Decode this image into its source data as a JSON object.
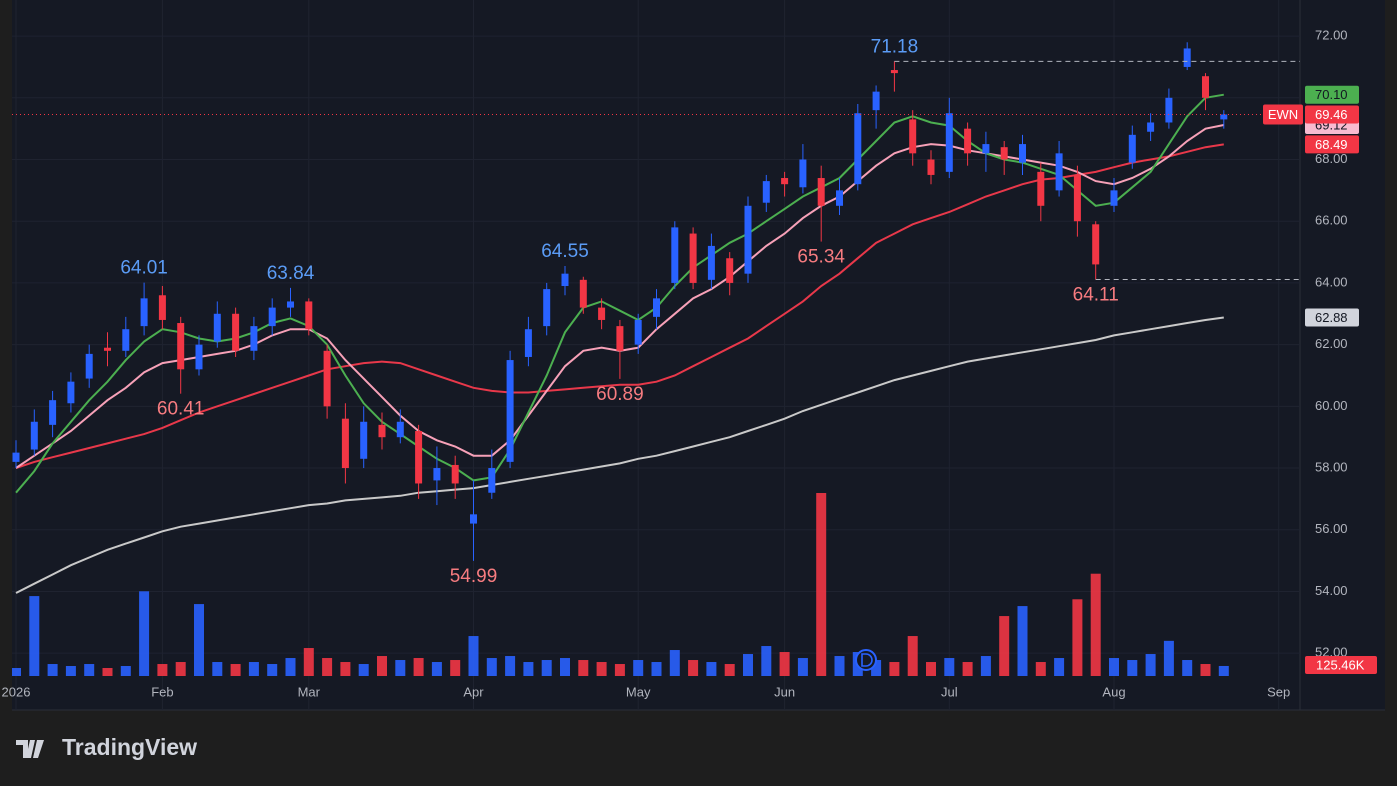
{
  "chart_data": {
    "type": "candlestick",
    "ticker": "EWN",
    "brand": "TradingView",
    "categories": [
      "2026",
      null,
      null,
      null,
      null,
      null,
      null,
      null,
      "Feb",
      null,
      null,
      null,
      null,
      null,
      null,
      null,
      "Mar",
      null,
      null,
      null,
      null,
      null,
      null,
      null,
      null,
      "Apr",
      null,
      null,
      null,
      null,
      null,
      null,
      null,
      null,
      "May",
      null,
      null,
      null,
      null,
      null,
      null,
      null,
      "Jun",
      null,
      null,
      null,
      null,
      null,
      null,
      null,
      null,
      "Jul",
      null,
      null,
      null,
      null,
      null,
      null,
      null,
      null,
      "Aug",
      null,
      null,
      null,
      null,
      null,
      null,
      null,
      null,
      "Sep"
    ],
    "open": [
      58.2,
      58.6,
      59.4,
      60.1,
      60.9,
      61.9,
      61.8,
      62.6,
      63.6,
      62.7,
      61.2,
      62.1,
      63.0,
      61.8,
      62.6,
      63.2,
      63.4,
      61.8,
      59.6,
      58.3,
      59.4,
      59.0,
      59.2,
      57.6,
      58.1,
      56.2,
      57.2,
      58.2,
      61.6,
      62.6,
      63.9,
      64.1,
      63.2,
      62.6,
      62.0,
      62.9,
      64.0,
      65.6,
      64.1,
      64.8,
      64.3,
      66.6,
      67.4,
      67.1,
      67.4,
      66.5,
      67.2,
      69.6,
      70.9,
      69.3,
      68.0,
      67.6,
      69.0,
      68.2,
      68.4,
      67.9,
      67.6,
      67.0,
      67.5,
      65.9,
      66.5,
      67.9,
      68.9,
      69.2,
      71.0,
      70.7,
      69.3,
      null,
      null,
      null
    ],
    "high": [
      58.9,
      59.9,
      60.5,
      61.1,
      62.0,
      62.4,
      62.9,
      64.01,
      63.9,
      62.9,
      62.3,
      63.4,
      63.2,
      62.9,
      63.5,
      63.84,
      63.5,
      62.0,
      60.1,
      60.0,
      59.8,
      59.9,
      59.4,
      58.7,
      58.4,
      57.6,
      58.6,
      61.8,
      62.9,
      64.0,
      64.55,
      64.2,
      63.5,
      62.8,
      63.0,
      63.8,
      66.0,
      65.8,
      65.6,
      65.0,
      66.8,
      67.5,
      67.6,
      68.5,
      67.8,
      67.4,
      69.8,
      70.4,
      71.18,
      69.6,
      68.3,
      70.0,
      69.2,
      68.9,
      68.6,
      68.8,
      67.9,
      68.6,
      67.8,
      66.0,
      67.4,
      69.1,
      69.5,
      70.3,
      71.8,
      70.8,
      69.6,
      null,
      null,
      null
    ],
    "low": [
      58.0,
      58.4,
      59.0,
      59.8,
      60.6,
      61.3,
      61.6,
      62.3,
      62.5,
      60.41,
      61.0,
      61.9,
      61.6,
      61.5,
      62.3,
      62.9,
      62.3,
      59.6,
      57.5,
      58.0,
      58.6,
      58.8,
      57.0,
      56.8,
      57.0,
      54.99,
      57.0,
      58.0,
      61.3,
      62.3,
      63.6,
      63.0,
      62.5,
      60.89,
      61.7,
      62.5,
      63.8,
      63.8,
      63.8,
      63.6,
      64.0,
      66.3,
      66.8,
      66.9,
      65.34,
      66.2,
      67.0,
      69.0,
      70.2,
      67.8,
      67.2,
      67.4,
      67.8,
      67.6,
      67.5,
      67.5,
      66.0,
      66.8,
      65.5,
      64.11,
      66.3,
      67.7,
      68.6,
      69.0,
      70.9,
      69.6,
      69.0,
      null,
      null,
      null
    ],
    "close": [
      58.5,
      59.5,
      60.2,
      60.8,
      61.7,
      61.8,
      62.5,
      63.5,
      62.8,
      61.2,
      62.0,
      63.0,
      61.8,
      62.6,
      63.2,
      63.4,
      62.5,
      60.0,
      58.0,
      59.5,
      59.0,
      59.5,
      57.5,
      58.0,
      57.5,
      56.5,
      58.0,
      61.5,
      62.5,
      63.8,
      64.3,
      63.2,
      62.8,
      61.8,
      62.8,
      63.5,
      65.8,
      64.0,
      65.2,
      64.0,
      66.5,
      67.3,
      67.2,
      68.0,
      66.5,
      67.0,
      69.5,
      70.2,
      70.8,
      68.2,
      67.5,
      69.5,
      68.2,
      68.5,
      68.0,
      68.5,
      66.5,
      68.2,
      66.0,
      64.6,
      67.0,
      68.8,
      69.2,
      70.0,
      71.6,
      70.0,
      69.46,
      null,
      null,
      null
    ],
    "up_color": "#2962ff",
    "down_color": "#f23645",
    "series": [
      {
        "color": "#4caf50",
        "values": [
          57.2,
          57.9,
          58.8,
          59.5,
          60.2,
          60.8,
          61.5,
          62.1,
          62.5,
          62.4,
          62.2,
          62.1,
          62.2,
          62.4,
          62.7,
          62.85,
          62.6,
          62.0,
          61.0,
          60.1,
          59.5,
          59.1,
          58.7,
          58.3,
          58.0,
          57.6,
          57.7,
          58.6,
          59.8,
          61.0,
          62.4,
          63.2,
          63.4,
          63.1,
          62.8,
          63.2,
          63.9,
          64.5,
          64.9,
          65.3,
          65.6,
          66.0,
          66.4,
          66.8,
          67.1,
          67.4,
          68.0,
          68.6,
          69.2,
          69.4,
          69.2,
          69.1,
          68.6,
          68.2,
          68.0,
          67.9,
          67.7,
          67.5,
          67.0,
          66.5,
          66.6,
          67.1,
          67.6,
          68.5,
          69.4,
          70.0,
          70.1,
          null,
          null,
          null
        ],
        "value_labels": [
          null,
          null,
          null,
          null,
          null,
          null,
          null,
          null,
          null,
          null,
          null,
          null,
          null,
          null,
          null,
          null,
          null,
          null,
          null,
          null,
          null,
          null,
          null,
          null,
          null,
          null,
          null,
          null,
          null,
          null,
          null,
          null,
          null,
          null,
          null,
          null,
          null,
          null,
          null,
          null,
          null,
          null,
          null,
          null,
          null,
          null,
          null,
          null,
          null,
          null,
          null,
          null,
          null,
          null,
          null,
          null,
          null,
          null,
          null,
          null,
          null,
          null,
          null,
          null,
          null,
          null,
          "70.10",
          null,
          null,
          null
        ]
      },
      {
        "color": "#f7a1b8",
        "values": [
          58.0,
          58.4,
          58.8,
          59.2,
          59.7,
          60.2,
          60.6,
          61.1,
          61.4,
          61.5,
          61.6,
          61.7,
          61.8,
          62.0,
          62.3,
          62.5,
          62.5,
          62.2,
          61.5,
          60.9,
          60.3,
          59.7,
          59.2,
          58.9,
          58.7,
          58.4,
          58.4,
          58.9,
          59.7,
          60.5,
          61.3,
          61.8,
          61.9,
          61.8,
          61.9,
          62.5,
          63.0,
          63.5,
          63.8,
          64.2,
          64.7,
          65.2,
          65.6,
          66.1,
          66.5,
          66.8,
          67.3,
          67.8,
          68.2,
          68.4,
          68.5,
          68.45,
          68.3,
          68.2,
          68.1,
          68.0,
          67.9,
          67.8,
          67.6,
          67.3,
          67.2,
          67.4,
          67.7,
          68.1,
          68.6,
          69.0,
          69.12,
          null,
          null,
          null
        ]
      },
      {
        "color": "#e8384a",
        "values": [
          58.0,
          58.2,
          58.35,
          58.5,
          58.65,
          58.8,
          58.95,
          59.1,
          59.3,
          59.55,
          59.8,
          60.0,
          60.2,
          60.4,
          60.6,
          60.8,
          61.0,
          61.2,
          61.3,
          61.4,
          61.45,
          61.4,
          61.2,
          61.0,
          60.8,
          60.6,
          60.5,
          60.45,
          60.45,
          60.5,
          60.55,
          60.6,
          60.65,
          60.7,
          60.7,
          60.8,
          61.0,
          61.3,
          61.6,
          61.9,
          62.2,
          62.6,
          63.0,
          63.4,
          63.9,
          64.3,
          64.8,
          65.3,
          65.6,
          65.9,
          66.1,
          66.3,
          66.55,
          66.8,
          67.0,
          67.2,
          67.35,
          67.4,
          67.5,
          67.6,
          67.75,
          67.9,
          68.0,
          68.1,
          68.25,
          68.4,
          68.49,
          null,
          null,
          null
        ]
      },
      {
        "color": "#c9c9c9",
        "values": [
          53.95,
          54.25,
          54.55,
          54.85,
          55.1,
          55.35,
          55.55,
          55.75,
          55.95,
          56.1,
          56.2,
          56.3,
          56.4,
          56.5,
          56.6,
          56.7,
          56.8,
          56.85,
          56.95,
          57.0,
          57.05,
          57.1,
          57.2,
          57.25,
          57.3,
          57.35,
          57.45,
          57.55,
          57.65,
          57.75,
          57.85,
          57.95,
          58.05,
          58.15,
          58.3,
          58.4,
          58.55,
          58.7,
          58.85,
          59.0,
          59.2,
          59.4,
          59.6,
          59.85,
          60.05,
          60.25,
          60.45,
          60.65,
          60.85,
          61.0,
          61.15,
          61.3,
          61.45,
          61.55,
          61.65,
          61.75,
          61.85,
          61.95,
          62.05,
          62.15,
          62.3,
          62.4,
          62.5,
          62.6,
          62.7,
          62.8,
          62.88,
          null,
          null,
          null
        ]
      }
    ],
    "volume": {
      "values": [
        100000,
        1000000,
        150000,
        125000,
        150000,
        100000,
        125000,
        1060000,
        150000,
        175000,
        900000,
        175000,
        150000,
        175000,
        150000,
        225000,
        350000,
        225000,
        175000,
        150000,
        250000,
        200000,
        225000,
        175000,
        200000,
        500000,
        225000,
        250000,
        175000,
        200000,
        225000,
        200000,
        175000,
        150000,
        200000,
        175000,
        325000,
        200000,
        175000,
        150000,
        275000,
        375000,
        300000,
        225000,
        2290000,
        250000,
        300000,
        200000,
        175000,
        500000,
        175000,
        225000,
        175000,
        250000,
        750000,
        875000,
        175000,
        225000,
        960000,
        1280000,
        225000,
        200000,
        275000,
        440000,
        200000,
        150000,
        125460,
        null,
        null,
        null
      ],
      "value_labels": [
        null,
        null,
        null,
        null,
        null,
        null,
        null,
        null,
        null,
        null,
        null,
        null,
        null,
        null,
        null,
        null,
        null,
        null,
        null,
        null,
        null,
        null,
        null,
        null,
        null,
        null,
        null,
        null,
        null,
        null,
        null,
        null,
        null,
        null,
        null,
        null,
        null,
        null,
        null,
        null,
        null,
        null,
        null,
        null,
        null,
        null,
        null,
        null,
        null,
        null,
        null,
        null,
        null,
        null,
        null,
        null,
        null,
        null,
        null,
        null,
        null,
        null,
        null,
        null,
        null,
        null,
        "125.46K",
        null,
        null,
        null
      ]
    },
    "high_labels": [
      64.01,
      63.84,
      64.55,
      71.18
    ],
    "low_labels": [
      60.41,
      54.99,
      60.89,
      65.34,
      64.11
    ],
    "ylim": [
      51.26,
      73.17
    ],
    "yticks": [
      {
        "value": 52,
        "label": "52.00"
      },
      {
        "value": 54,
        "label": "54.00"
      },
      {
        "value": 56,
        "label": "56.00"
      },
      {
        "value": 58,
        "label": "58.00"
      },
      {
        "value": 60,
        "label": "60.00"
      },
      {
        "value": 62,
        "label": "62.00"
      },
      {
        "value": 64,
        "label": "64.00"
      },
      {
        "value": 66,
        "label": "66.00"
      },
      {
        "value": 68,
        "label": "68.00"
      },
      {
        "value": 70,
        "label": "70.00"
      },
      {
        "value": 72,
        "label": "72.00"
      }
    ],
    "grid": true
  }
}
